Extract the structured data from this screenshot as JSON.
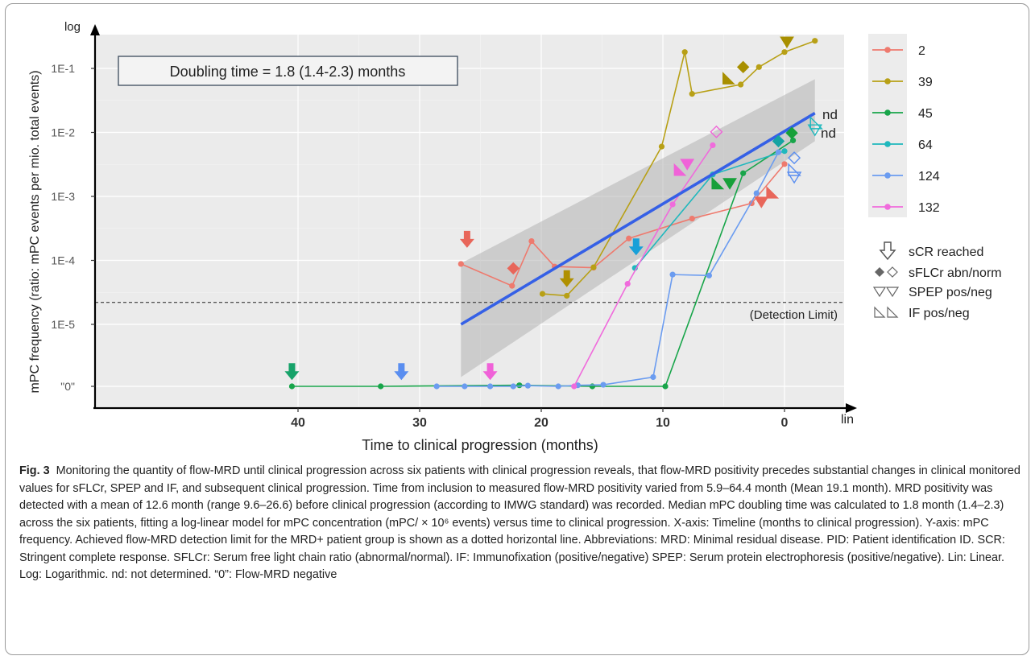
{
  "chart_data": {
    "type": "line",
    "y_scale": "log",
    "x_reversed": true,
    "xlim": [
      43,
      -3
    ],
    "title": "",
    "xlabel": "Time to clinical progression (months)",
    "ylabel": "mPC  frequency   (ratio: mPC  events per mio. total events)",
    "x_ticks": [
      40,
      30,
      20,
      10,
      0
    ],
    "y_ticks": [
      {
        "label": "1E-1",
        "value": 0.1
      },
      {
        "label": "1E-2",
        "value": 0.01
      },
      {
        "label": "1E-3",
        "value": 0.001
      },
      {
        "label": "1E-4",
        "value": 0.0001
      },
      {
        "label": "1E-5",
        "value": 1e-05
      },
      {
        "label": "\"0\"",
        "value": 0
      }
    ],
    "x_axis_tag": "lin",
    "y_axis_tag": "log",
    "detection_limit": {
      "value": 2.2e-05,
      "label": "(Detection Limit)"
    },
    "doubling_time_text": "Doubling time = 1.8 (1.4-2.3) months",
    "nd_labels": [
      "nd",
      "nd"
    ],
    "series": [
      {
        "name": "2",
        "color": "#ee7a6e",
        "points": [
          {
            "x": 26.6,
            "y": 8.8e-05
          },
          {
            "x": 22.4,
            "y": 4e-05
          },
          {
            "x": 20.8,
            "y": 0.0002
          },
          {
            "x": 18.9,
            "y": 8e-05
          },
          {
            "x": 15.7,
            "y": 7.7e-05
          },
          {
            "x": 12.8,
            "y": 0.00022
          },
          {
            "x": 7.6,
            "y": 0.00045
          },
          {
            "x": 2.7,
            "y": 0.00078
          },
          {
            "x": 0,
            "y": 0.0032
          }
        ]
      },
      {
        "name": "39",
        "color": "#b8a016",
        "points": [
          {
            "x": 19.9,
            "y": 3e-05
          },
          {
            "x": 17.9,
            "y": 2.8e-05
          },
          {
            "x": 15.7,
            "y": 7.8e-05
          },
          {
            "x": 10.1,
            "y": 0.006
          },
          {
            "x": 8.2,
            "y": 0.18
          },
          {
            "x": 7.6,
            "y": 0.04
          },
          {
            "x": 3.6,
            "y": 0.056
          },
          {
            "x": 2.1,
            "y": 0.105
          },
          {
            "x": 0,
            "y": 0.18
          },
          {
            "x": -2.5,
            "y": 0.27
          }
        ]
      },
      {
        "name": "45",
        "color": "#18a54a",
        "points": [
          {
            "x": 40.5,
            "y": 0
          },
          {
            "x": 33.2,
            "y": 0
          },
          {
            "x": 21.8,
            "y": 3e-07
          },
          {
            "x": 15.8,
            "y": 1e-07
          },
          {
            "x": 9.8,
            "y": 0
          },
          {
            "x": 3.4,
            "y": 0.0023
          },
          {
            "x": -0.7,
            "y": 0.0075
          }
        ]
      },
      {
        "name": "64",
        "color": "#1fb8bd",
        "points": [
          {
            "x": 12.3,
            "y": 7.6e-05
          },
          {
            "x": 5.9,
            "y": 0.0022
          },
          {
            "x": 0,
            "y": 0.0051
          }
        ]
      },
      {
        "name": "124",
        "color": "#6b9cf0",
        "points": [
          {
            "x": 28.6,
            "y": 0
          },
          {
            "x": 26.3,
            "y": 0
          },
          {
            "x": 24.2,
            "y": 0
          },
          {
            "x": 22.3,
            "y": 0
          },
          {
            "x": 21.1,
            "y": 2e-07
          },
          {
            "x": 18.6,
            "y": 1e-07
          },
          {
            "x": 17,
            "y": 3e-07
          },
          {
            "x": 14.9,
            "y": 5e-07
          },
          {
            "x": 10.8,
            "y": 1.5e-06
          },
          {
            "x": 9.2,
            "y": 6e-05
          },
          {
            "x": 6.2,
            "y": 5.8e-05
          },
          {
            "x": 2.3,
            "y": 0.00112
          },
          {
            "x": 0.5,
            "y": 0.0049
          }
        ]
      },
      {
        "name": "132",
        "color": "#f06bdc",
        "points": [
          {
            "x": 17.3,
            "y": 1e-07
          },
          {
            "x": 12.9,
            "y": 4.3e-05
          },
          {
            "x": 9.2,
            "y": 0.00075
          },
          {
            "x": 5.9,
            "y": 0.0063
          }
        ]
      }
    ],
    "regression": {
      "color": "#3560e6",
      "line": [
        {
          "x": 26.6,
          "y": 1e-05
        },
        {
          "x": -2.5,
          "y": 0.02
        }
      ],
      "band_upper": [
        {
          "x": 26.6,
          "y": 9e-05
        },
        {
          "x": -2.5,
          "y": 0.068
        }
      ],
      "band_lower": [
        {
          "x": 26.6,
          "y": 1.5e-06
        },
        {
          "x": -2.5,
          "y": 0.0073
        }
      ]
    },
    "event_markers": [
      {
        "type": "scr",
        "color": "#e8665a",
        "x": 26.1,
        "y": 0.00021
      },
      {
        "type": "scr",
        "color": "#b09000",
        "x": 17.9,
        "y": 5.1e-05
      },
      {
        "type": "scr",
        "color": "#18a0d8",
        "x": 12.2,
        "y": 0.00016
      },
      {
        "type": "scr",
        "color": "#17a36a",
        "x": 40.5,
        "y": 1.8e-06
      },
      {
        "type": "scr",
        "color": "#5a8ef0",
        "x": 31.5,
        "y": 1.8e-06
      },
      {
        "type": "scr",
        "color": "#f062d8",
        "x": 24.2,
        "y": 1.8e-06
      },
      {
        "type": "sflcr-abn",
        "color": "#e8665a",
        "x": 22.3,
        "y": 7.5e-05
      },
      {
        "type": "sflcr-abn",
        "color": "#a88f00",
        "x": 3.4,
        "y": 0.105
      },
      {
        "type": "sflcr-abn",
        "color": "#16a3a3",
        "x": 0.5,
        "y": 0.0073
      },
      {
        "type": "sflcr-abn",
        "color": "#17a03a",
        "x": -0.6,
        "y": 0.0098
      },
      {
        "type": "sflcr-norm",
        "color": "#f062d8",
        "x": 5.6,
        "y": 0.0102
      },
      {
        "type": "sflcr-norm",
        "color": "#5a8ef0",
        "x": -0.8,
        "y": 0.004
      },
      {
        "type": "spep-pos",
        "color": "#a88f00",
        "x": -0.2,
        "y": 0.26
      },
      {
        "type": "spep-pos",
        "color": "#e8665a",
        "x": 1.9,
        "y": 0.00082
      },
      {
        "type": "spep-pos",
        "color": "#17a03a",
        "x": 4.5,
        "y": 0.0016
      },
      {
        "type": "spep-pos",
        "color": "#f062d8",
        "x": 8.0,
        "y": 0.0032
      },
      {
        "type": "spep-neg",
        "color": "#1fb8bd",
        "x": -2.5,
        "y": 0.011
      },
      {
        "type": "spep-neg",
        "color": "#5a8ef0",
        "x": -0.8,
        "y": 0.002
      },
      {
        "type": "if-pos",
        "color": "#a88f00",
        "x": 4.6,
        "y": 0.07
      },
      {
        "type": "if-pos",
        "color": "#e8665a",
        "x": 1.0,
        "y": 0.00115
      },
      {
        "type": "if-pos",
        "color": "#17a03a",
        "x": 5.5,
        "y": 0.0016
      },
      {
        "type": "if-pos",
        "color": "#f062d8",
        "x": 8.6,
        "y": 0.0026
      },
      {
        "type": "if-neg",
        "color": "#1fb8bd",
        "x": -2.6,
        "y": 0.014
      },
      {
        "type": "if-neg",
        "color": "#5a8ef0",
        "x": -0.8,
        "y": 0.0026
      }
    ],
    "legend": {
      "placement": "right",
      "entries": [
        "2",
        "39",
        "45",
        "64",
        "124",
        "132"
      ],
      "symbols": [
        {
          "symbol": "scr",
          "label": "sCR reached"
        },
        {
          "symbol": "sflcr",
          "label": "sFLCr abn/norm"
        },
        {
          "symbol": "spep",
          "label": "SPEP pos/neg"
        },
        {
          "symbol": "if",
          "label": "IF pos/neg"
        }
      ]
    }
  },
  "caption": {
    "fig_label": "Fig. 3",
    "text": "Monitoring the quantity of flow-MRD until clinical progression across six patients with clinical progression reveals, that flow-MRD positivity precedes substantial changes in clinical monitored values for sFLCr, SPEP and IF, and subsequent clinical progression. Time from inclusion to measured flow-MRD positivity varied from 5.9–64.4 month (Mean 19.1 month). MRD positivity was detected with a mean of 12.6 month (range 9.6–26.6) before clinical progression (according to IMWG standard) was recorded. Median mPC doubling time was calculated to 1.8 month (1.4–2.3) across the six patients, fitting a log-linear model for mPC concentration (mPC/ × 10⁶ events) versus time to clinical progression. X-axis: Timeline (months to clinical progression). Y-axis: mPC frequency. Achieved flow-MRD detection limit for the MRD+ patient group is shown as a dotted horizontal line. Abbreviations: MRD: Minimal residual disease. PID: Patient identification ID. SCR: Stringent complete response. SFLCr: Serum free light chain ratio (abnormal/normal). IF: Immunofixation (positive/negative) SPEP: Serum protein electrophoresis (positive/negative). Lin: Linear. Log: Logarithmic. nd: not determined. “0”: Flow-MRD negative"
  }
}
